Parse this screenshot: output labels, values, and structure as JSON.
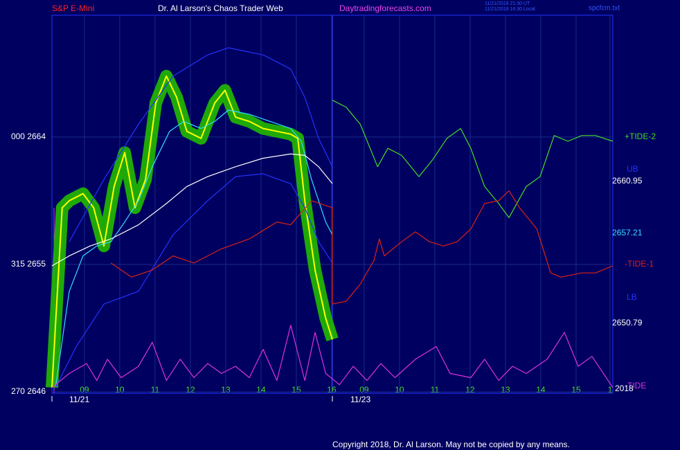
{
  "header": {
    "left": "S&P E-Mini",
    "center": "Dr. Al Larson's Chaos Trader Web",
    "site": "Daytradingforecasts.com",
    "stamp1": "11/21/2018 21:30 UT",
    "stamp2": "11/21/2018 16:30 Local",
    "file": "spcfcm.txt"
  },
  "footer": "Copyright 2018, Dr. Al Larson. May not be copied by any means.",
  "chart_data": {
    "type": "line",
    "xlim": [
      8.08,
      23.96
    ],
    "ylim": [
      2645.9,
      2672.6
    ],
    "xticks": [
      {
        "value": 9,
        "label": "09"
      },
      10,
      11,
      12,
      13,
      14,
      15,
      16,
      {
        "value": 16.92,
        "label": "09"
      },
      {
        "value": 17.92,
        "label": "10"
      },
      {
        "value": 18.92,
        "label": "11"
      },
      {
        "value": 19.92,
        "label": "12"
      },
      {
        "value": 20.92,
        "label": "13"
      },
      {
        "value": 21.92,
        "label": "14"
      },
      {
        "value": 22.92,
        "label": "15"
      },
      {
        "value": 23.88,
        "label": "1"
      }
    ],
    "yticks": [
      {
        "value": 2646,
        "label": "270  2646"
      },
      {
        "value": 2655,
        "label": "315  2655"
      },
      {
        "value": 2664,
        "label": "000  2664"
      }
    ],
    "dates": [
      "11/21",
      "11/23"
    ],
    "grid": true,
    "series": [
      {
        "color": "#ffff00",
        "halo": "#22bb00",
        "x": [
          8.08,
          8.37,
          8.57,
          8.96,
          9.26,
          9.55,
          9.84,
          10.14,
          10.43,
          10.73,
          11.02,
          11.32,
          11.61,
          11.9,
          12.3,
          12.69,
          12.98,
          13.28,
          13.67,
          14.06,
          14.45,
          14.84,
          15.04,
          15.24,
          15.53,
          15.83,
          16.02
        ],
        "values": [
          2646.3,
          2659.0,
          2659.5,
          2660.0,
          2659.0,
          2656.3,
          2660.5,
          2662.9,
          2659.0,
          2661.0,
          2666.4,
          2668.3,
          2666.8,
          2664.4,
          2663.9,
          2666.4,
          2667.3,
          2665.4,
          2665.1,
          2664.6,
          2664.4,
          2664.2,
          2663.9,
          2659.5,
          2654.6,
          2651.2,
          2649.7
        ]
      },
      {
        "color": "#33ddff",
        "x": [
          8.18,
          8.57,
          8.96,
          9.35,
          9.75,
          10.14,
          10.53,
          10.92,
          11.41,
          11.81,
          12.3,
          12.69,
          13.08,
          13.67,
          14.26,
          14.84,
          15.14,
          15.43,
          15.83,
          16.02
        ],
        "values": [
          2646.3,
          2653.1,
          2655.6,
          2656.3,
          2656.6,
          2658.0,
          2659.5,
          2661.9,
          2664.4,
          2665.1,
          2664.6,
          2665.1,
          2665.9,
          2665.6,
          2665.1,
          2664.6,
          2663.7,
          2661.0,
          2658.0,
          2657.1
        ]
      },
      {
        "color": "#ffffff",
        "x": [
          8.08,
          8.57,
          9.16,
          9.75,
          10.53,
          11.32,
          11.9,
          12.49,
          13.28,
          14.06,
          14.84,
          15.24,
          15.63,
          16.02
        ],
        "values": [
          2654.9,
          2655.6,
          2656.3,
          2656.8,
          2657.8,
          2659.3,
          2660.5,
          2661.2,
          2661.9,
          2662.5,
          2662.8,
          2662.7,
          2661.9,
          2660.7
        ]
      },
      {
        "name": "UB",
        "color": "#2233ff",
        "x": [
          8.57,
          9.55,
          10.53,
          11.51,
          12.49,
          13.08,
          14.06,
          14.84,
          15.24,
          15.63,
          16.02
        ],
        "values": [
          2656.6,
          2661.0,
          2664.9,
          2668.3,
          2669.8,
          2670.3,
          2669.8,
          2668.8,
          2666.8,
          2663.9,
          2661.9
        ]
      },
      {
        "name": "LB",
        "color": "#2233ff",
        "x": [
          8.18,
          8.77,
          9.55,
          10.53,
          11.51,
          12.49,
          13.28,
          14.06,
          14.84,
          15.24,
          15.63,
          16.02
        ],
        "values": [
          2646.3,
          2649.2,
          2652.2,
          2653.1,
          2657.1,
          2659.5,
          2661.2,
          2661.4,
          2660.7,
          2659.0,
          2656.6,
          2655.1
        ]
      },
      {
        "name": "+TIDE-2",
        "color": "#44dd22",
        "x": [
          16.02,
          16.41,
          16.81,
          17.3,
          17.59,
          17.98,
          18.47,
          18.86,
          19.26,
          19.65,
          19.94,
          20.33,
          20.73,
          21.02,
          21.51,
          21.9,
          22.3,
          22.69,
          23.08,
          23.47,
          23.96
        ],
        "values": [
          2666.6,
          2666.1,
          2664.9,
          2661.9,
          2663.2,
          2662.7,
          2661.2,
          2662.4,
          2663.9,
          2664.6,
          2663.2,
          2660.5,
          2659.3,
          2658.3,
          2660.5,
          2661.2,
          2664.1,
          2663.7,
          2664.1,
          2664.1,
          2663.7
        ]
      },
      {
        "name": "-TIDE-1",
        "color": "#dd2211",
        "x": [
          9.75,
          10.33,
          10.92,
          11.51,
          12.1,
          12.88,
          13.67,
          14.45,
          14.84,
          15.43,
          16.02,
          16.02,
          16.41,
          16.81,
          17.2,
          17.35,
          17.49,
          17.98,
          18.37,
          18.77,
          19.16,
          19.55,
          19.94,
          20.33,
          20.73,
          21.02,
          21.32,
          21.81,
          22.2,
          22.49,
          23.08,
          23.47,
          23.96
        ],
        "values": [
          2655.1,
          2654.1,
          2654.6,
          2655.6,
          2655.1,
          2656.1,
          2656.8,
          2658.0,
          2657.8,
          2659.5,
          2659.0,
          2652.2,
          2652.4,
          2653.6,
          2655.3,
          2656.8,
          2655.6,
          2656.6,
          2657.3,
          2656.6,
          2656.3,
          2656.6,
          2657.5,
          2659.3,
          2659.5,
          2660.2,
          2659.0,
          2657.5,
          2654.4,
          2654.1,
          2654.4,
          2654.4,
          2654.9
        ]
      },
      {
        "name": "-TIDE",
        "color": "#dd33dd",
        "x": [
          8.08,
          8.57,
          9.06,
          9.35,
          9.65,
          10.04,
          10.53,
          10.92,
          11.32,
          11.71,
          12.1,
          12.49,
          12.88,
          13.28,
          13.67,
          14.06,
          14.45,
          14.84,
          15.24,
          15.53,
          15.83,
          16.22,
          16.61,
          17.0,
          17.39,
          17.79,
          18.37,
          18.96,
          19.35,
          19.94,
          20.33,
          20.73,
          21.12,
          21.51,
          22.1,
          22.59,
          22.98,
          23.37,
          23.96
        ],
        "values": [
          2646.3,
          2647.3,
          2648.0,
          2646.8,
          2648.3,
          2647.0,
          2647.8,
          2649.5,
          2646.8,
          2648.3,
          2647.0,
          2648.0,
          2647.3,
          2647.8,
          2647.0,
          2649.0,
          2646.8,
          2650.7,
          2646.8,
          2650.2,
          2647.3,
          2646.5,
          2647.8,
          2646.8,
          2648.0,
          2647.0,
          2648.3,
          2649.2,
          2647.3,
          2647.0,
          2648.3,
          2646.8,
          2647.8,
          2647.3,
          2648.3,
          2650.2,
          2647.8,
          2648.5,
          2646.3
        ]
      }
    ],
    "annotations": [
      {
        "text": "2660.95",
        "color": "#ffffff"
      },
      {
        "text": "2657.21",
        "color": "#33ddff"
      },
      {
        "text": "2650.79",
        "color": "#ffffff"
      },
      {
        "text": "2018",
        "color": "#ffffff"
      }
    ]
  }
}
